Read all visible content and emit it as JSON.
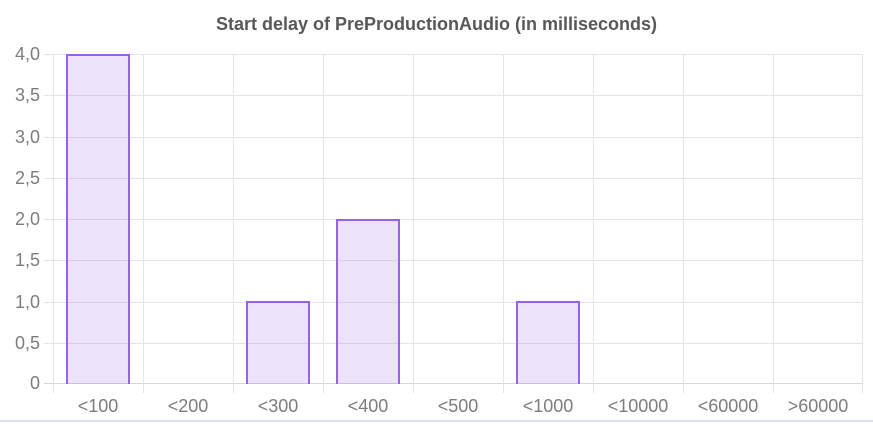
{
  "chart_data": {
    "type": "bar",
    "title": "Start delay of PreProductionAudio (in milliseconds)",
    "categories": [
      "<100",
      "<200",
      "<300",
      "<400",
      "<500",
      "<1000",
      "<10000",
      "<60000",
      ">60000"
    ],
    "values": [
      4,
      0,
      1,
      2,
      0,
      1,
      0,
      0,
      0
    ],
    "xlabel": "",
    "ylabel": "",
    "ylim": [
      0,
      4
    ],
    "ytick_step": 0.5,
    "ytick_labels": [
      "0",
      "0,5",
      "1,0",
      "1,5",
      "2,0",
      "2,5",
      "3,0",
      "3,5",
      "4,0"
    ],
    "grid": true,
    "legend": false
  },
  "colors": {
    "background": "#ffffff",
    "bar_fill": "rgba(150, 99, 230, 0.18)",
    "bar_border": "#9663e6",
    "grid": "#e4e4e4",
    "axis_line": "#d6d6d6",
    "tick_label": "#7d7d7d",
    "title": "#58585a",
    "divider": "#d9e0f2"
  }
}
